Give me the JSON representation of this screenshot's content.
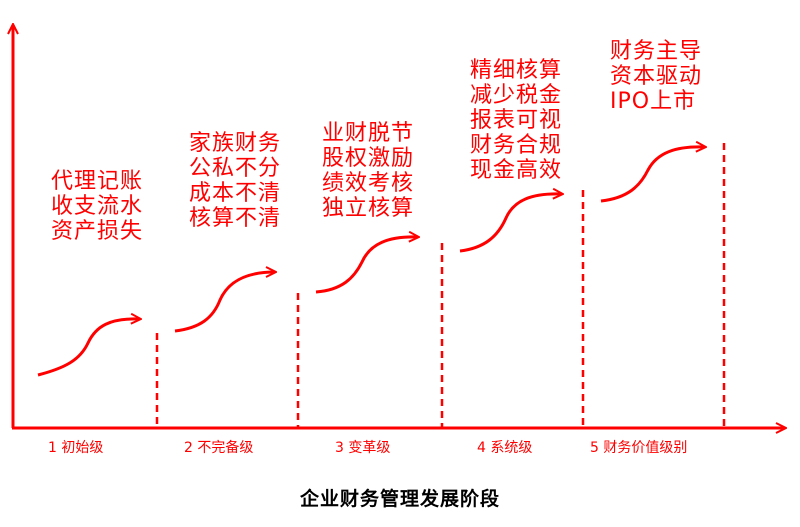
{
  "title": "企业财务管理发展阶段",
  "stages": [
    {
      "level": "1 初始级",
      "traits": [
        "代理记账",
        "收支流水",
        "资产损失"
      ]
    },
    {
      "level": "2 不完备级",
      "traits": [
        "家族财务",
        "公私不分",
        "成本不清",
        "核算不清"
      ]
    },
    {
      "level": "3 变革级",
      "traits": [
        "业财脱节",
        "股权激励",
        "绩效考核",
        "独立核算"
      ]
    },
    {
      "level": "4 系统级",
      "traits": [
        "精细核算",
        "减少税金",
        "报表可视",
        "财务合规",
        "现金高效"
      ]
    },
    {
      "level": "5 财务价值级别",
      "traits": [
        "财务主导",
        "资本驱动",
        "IPO上市"
      ]
    }
  ],
  "colors": {
    "accent": "#ff0000",
    "title": "#000000"
  }
}
